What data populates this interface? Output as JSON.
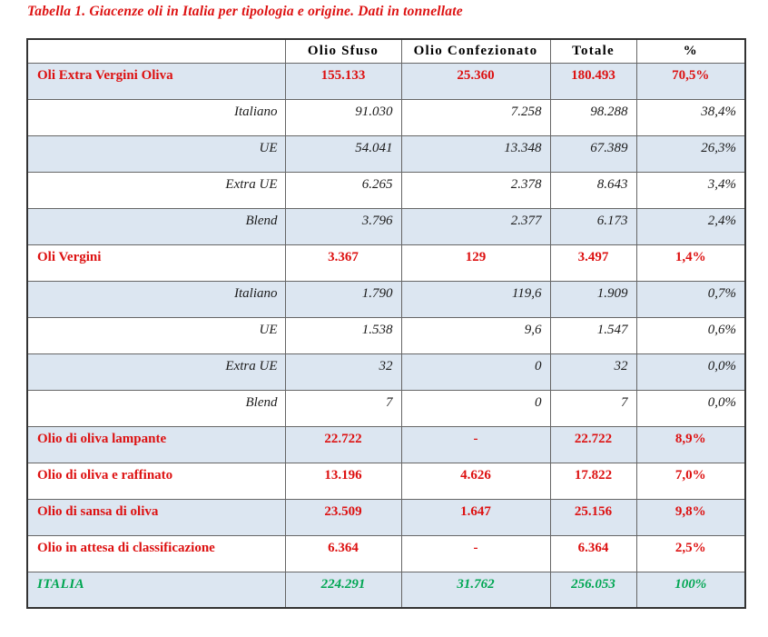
{
  "title": "Tabella 1. Giacenze oli in Italia per tipologia e origine. Dati in tonnellate",
  "table": {
    "headers": [
      "",
      "Olio Sfuso",
      "Olio Confezionato",
      "Totale",
      "%"
    ],
    "rows": [
      {
        "label": "Oli Extra Vergini Oliva",
        "type": "category",
        "values": [
          "155.133",
          "25.360",
          "180.493",
          "70,5%"
        ]
      },
      {
        "label": "Italiano",
        "type": "sub",
        "values": [
          "91.030",
          "7.258",
          "98.288",
          "38,4%"
        ]
      },
      {
        "label": "UE",
        "type": "sub",
        "values": [
          "54.041",
          "13.348",
          "67.389",
          "26,3%"
        ]
      },
      {
        "label": "Extra UE",
        "type": "sub",
        "values": [
          "6.265",
          "2.378",
          "8.643",
          "3,4%"
        ]
      },
      {
        "label": "Blend",
        "type": "sub",
        "values": [
          "3.796",
          "2.377",
          "6.173",
          "2,4%"
        ]
      },
      {
        "label": "Oli Vergini",
        "type": "category",
        "values": [
          "3.367",
          "129",
          "3.497",
          "1,4%"
        ]
      },
      {
        "label": "Italiano",
        "type": "sub",
        "values": [
          "1.790",
          "119,6",
          "1.909",
          "0,7%"
        ]
      },
      {
        "label": "UE",
        "type": "sub",
        "values": [
          "1.538",
          "9,6",
          "1.547",
          "0,6%"
        ]
      },
      {
        "label": "Extra UE",
        "type": "sub",
        "values": [
          "32",
          "0",
          "32",
          "0,0%"
        ]
      },
      {
        "label": "Blend",
        "type": "sub",
        "values": [
          "7",
          "0",
          "7",
          "0,0%"
        ]
      },
      {
        "label": "Olio di oliva lampante",
        "type": "category",
        "values": [
          "22.722",
          "-",
          "22.722",
          "8,9%"
        ]
      },
      {
        "label": "Olio di oliva e raffinato",
        "type": "category",
        "values": [
          "13.196",
          "4.626",
          "17.822",
          "7,0%"
        ]
      },
      {
        "label": "Olio di sansa di oliva",
        "type": "category",
        "values": [
          "23.509",
          "1.647",
          "25.156",
          "9,8%"
        ]
      },
      {
        "label": "Olio in attesa di classificazione",
        "type": "category",
        "values": [
          "6.364",
          "-",
          "6.364",
          "2,5%"
        ]
      },
      {
        "label": "ITALIA",
        "type": "total",
        "values": [
          "224.291",
          "31.762",
          "256.053",
          "100%"
        ]
      }
    ]
  },
  "colors": {
    "title_red": "#dd1111",
    "category_red": "#dd1111",
    "total_green": "#00a652",
    "row_shade_blue": "#dce6f1",
    "border_gray": "#666666",
    "outer_border": "#333333"
  }
}
